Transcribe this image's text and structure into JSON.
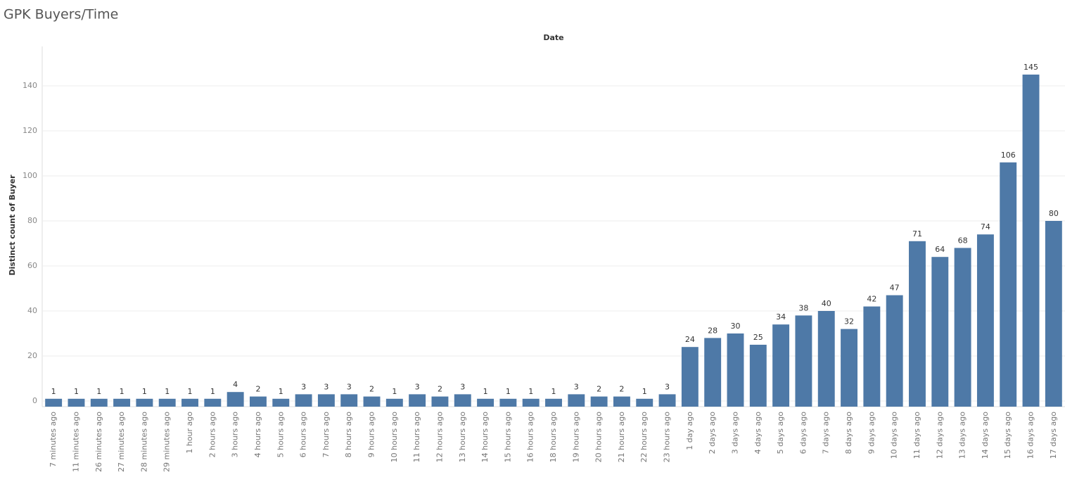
{
  "chart_data": {
    "type": "bar",
    "title": "GPK Buyers/Time",
    "x_label": "Date",
    "y_label": "Distinct count of Buyer",
    "categories": [
      "7 minutes ago",
      "11 minutes ago",
      "26 minutes ago",
      "27 minutes ago",
      "28 minutes ago",
      "29 minutes ago",
      "1 hour ago",
      "2 hours ago",
      "3 hours ago",
      "4 hours ago",
      "5 hours ago",
      "6 hours ago",
      "7 hours ago",
      "8 hours ago",
      "9 hours ago",
      "10 hours ago",
      "11 hours ago",
      "12 hours ago",
      "13 hours ago",
      "14 hours ago",
      "15 hours ago",
      "16 hours ago",
      "18 hours ago",
      "19 hours ago",
      "20 hours ago",
      "21 hours ago",
      "22 hours ago",
      "23 hours ago",
      "1 day ago",
      "2 days ago",
      "3 days ago",
      "4 days ago",
      "5 days ago",
      "6 days ago",
      "7 days ago",
      "8 days ago",
      "9 days ago",
      "10 days ago",
      "11 days ago",
      "12 days ago",
      "13 days ago",
      "14 days ago",
      "15 days ago",
      "16 days ago",
      "17 days ago"
    ],
    "values": [
      1,
      1,
      1,
      1,
      1,
      1,
      1,
      1,
      4,
      2,
      1,
      3,
      3,
      3,
      2,
      1,
      3,
      2,
      3,
      1,
      1,
      1,
      1,
      3,
      2,
      2,
      1,
      3,
      24,
      28,
      30,
      25,
      34,
      38,
      40,
      32,
      42,
      47,
      71,
      64,
      68,
      74,
      106,
      145,
      80
    ],
    "color": "#4e79a7",
    "ylim": [
      -2.5,
      157.5
    ],
    "yticks": [
      0,
      20,
      40,
      60,
      80,
      100,
      120,
      140
    ],
    "grid": true
  }
}
